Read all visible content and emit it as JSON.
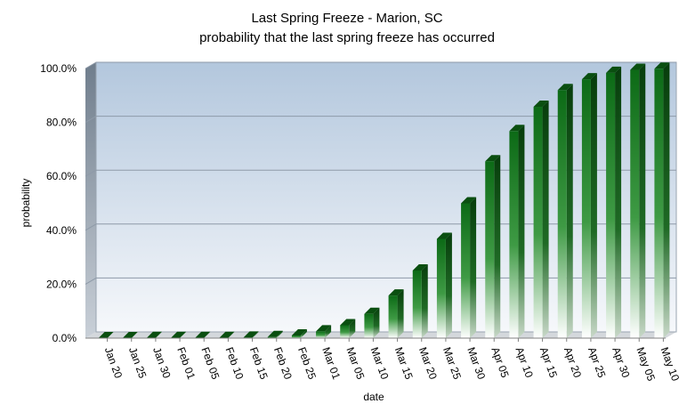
{
  "chart_data": {
    "type": "bar",
    "title": "Last Spring Freeze - Marion, SC",
    "subtitle": "probability that the last spring freeze has occurred",
    "xlabel": "date",
    "ylabel": "probability",
    "ylim": [
      0,
      100
    ],
    "yticks": [
      "0.0%",
      "20.0%",
      "40.0%",
      "60.0%",
      "80.0%",
      "100.0%"
    ],
    "grid": true,
    "legend": "none",
    "categories": [
      "Jan 20",
      "Jan 25",
      "Jan 30",
      "Feb 01",
      "Feb 05",
      "Feb 10",
      "Feb 15",
      "Feb 20",
      "Feb 25",
      "Mar 01",
      "Mar 05",
      "Mar 10",
      "Mar 15",
      "Mar 20",
      "Mar 25",
      "Mar 30",
      "Apr 05",
      "Apr 10",
      "Apr 15",
      "Apr 20",
      "Apr 25",
      "Apr 30",
      "May 05",
      "May 10"
    ],
    "values": [
      0.0,
      0.0,
      0.1,
      0.1,
      0.1,
      0.1,
      0.2,
      0.4,
      1.0,
      2.5,
      4.8,
      9.0,
      15.8,
      25.1,
      36.8,
      50.0,
      65.6,
      76.8,
      85.8,
      92.0,
      96.0,
      98.4,
      99.5,
      99.9
    ],
    "colors": {
      "bar_top": "#0c6a16",
      "bar_bottom": "#ffffff",
      "plot_top": "#b3c7dd",
      "plot_bottom": "#f6f8fb",
      "grid": "#8e9aa8"
    }
  }
}
